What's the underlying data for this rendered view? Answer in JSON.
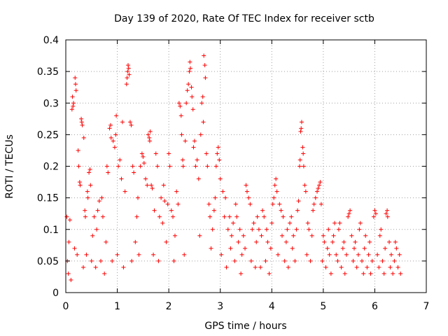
{
  "chart_data": {
    "type": "scatter",
    "title": "Day 139 of 2020, Rate Of TEC Index for receiver sctb",
    "xlabel": "GPS time / hours",
    "ylabel": "ROTI / TECUs",
    "xlim": [
      0,
      7
    ],
    "ylim": [
      0,
      0.4
    ],
    "xticks": [
      0,
      1,
      2,
      3,
      4,
      5,
      6,
      7
    ],
    "xtick_labels": [
      "0",
      "1",
      "2",
      "3",
      "4",
      "5",
      "6",
      "7"
    ],
    "yticks": [
      0,
      0.05,
      0.1,
      0.15,
      0.2,
      0.25,
      0.3,
      0.35,
      0.4
    ],
    "ytick_labels": [
      "0",
      "0.05",
      "0.1",
      "0.15",
      "0.2",
      "0.25",
      "0.3",
      "0.35",
      "0.4"
    ],
    "grid": true,
    "marker": "+",
    "color": "#ff0000",
    "series": [
      {
        "name": "ROTI",
        "points": [
          [
            0.02,
            0.12
          ],
          [
            0.03,
            0.05
          ],
          [
            0.05,
            0.03
          ],
          [
            0.06,
            0.08
          ],
          [
            0.08,
            0.115
          ],
          [
            0.1,
            0.02
          ],
          [
            0.12,
            0.29
          ],
          [
            0.13,
            0.31
          ],
          [
            0.14,
            0.295
          ],
          [
            0.15,
            0.3
          ],
          [
            0.17,
            0.07
          ],
          [
            0.18,
            0.34
          ],
          [
            0.19,
            0.33
          ],
          [
            0.2,
            0.32
          ],
          [
            0.22,
            0.06
          ],
          [
            0.24,
            0.225
          ],
          [
            0.25,
            0.2
          ],
          [
            0.27,
            0.175
          ],
          [
            0.28,
            0.17
          ],
          [
            0.3,
            0.275
          ],
          [
            0.31,
            0.27
          ],
          [
            0.32,
            0.265
          ],
          [
            0.34,
            0.04
          ],
          [
            0.35,
            0.245
          ],
          [
            0.37,
            0.13
          ],
          [
            0.38,
            0.12
          ],
          [
            0.4,
            0.06
          ],
          [
            0.42,
            0.16
          ],
          [
            0.43,
            0.15
          ],
          [
            0.45,
            0.19
          ],
          [
            0.47,
            0.195
          ],
          [
            0.48,
            0.17
          ],
          [
            0.5,
            0.05
          ],
          [
            0.52,
            0.09
          ],
          [
            0.55,
            0.12
          ],
          [
            0.58,
            0.04
          ],
          [
            0.6,
            0.1
          ],
          [
            0.62,
            0.13
          ],
          [
            0.65,
            0.145
          ],
          [
            0.68,
            0.05
          ],
          [
            0.7,
            0.15
          ],
          [
            0.72,
            0.12
          ],
          [
            0.75,
            0.03
          ],
          [
            0.78,
            0.08
          ],
          [
            0.8,
            0.2
          ],
          [
            0.82,
            0.19
          ],
          [
            0.85,
            0.26
          ],
          [
            0.87,
            0.265
          ],
          [
            0.88,
            0.245
          ],
          [
            0.9,
            0.05
          ],
          [
            0.92,
            0.24
          ],
          [
            0.95,
            0.23
          ],
          [
            0.97,
            0.25
          ],
          [
            0.98,
            0.28
          ],
          [
            1.0,
            0.06
          ],
          [
            1.02,
            0.2
          ],
          [
            1.05,
            0.21
          ],
          [
            1.08,
            0.18
          ],
          [
            1.1,
            0.27
          ],
          [
            1.12,
            0.04
          ],
          [
            1.15,
            0.16
          ],
          [
            1.18,
            0.33
          ],
          [
            1.19,
            0.34
          ],
          [
            1.2,
            0.35
          ],
          [
            1.21,
            0.36
          ],
          [
            1.22,
            0.355
          ],
          [
            1.23,
            0.345
          ],
          [
            1.25,
            0.27
          ],
          [
            1.27,
            0.265
          ],
          [
            1.28,
            0.05
          ],
          [
            1.3,
            0.2
          ],
          [
            1.32,
            0.19
          ],
          [
            1.35,
            0.08
          ],
          [
            1.38,
            0.12
          ],
          [
            1.4,
            0.15
          ],
          [
            1.42,
            0.06
          ],
          [
            1.45,
            0.2
          ],
          [
            1.48,
            0.22
          ],
          [
            1.5,
            0.215
          ],
          [
            1.52,
            0.205
          ],
          [
            1.55,
            0.18
          ],
          [
            1.58,
            0.17
          ],
          [
            1.6,
            0.25
          ],
          [
            1.62,
            0.245
          ],
          [
            1.63,
            0.24
          ],
          [
            1.64,
            0.255
          ],
          [
            1.66,
            0.17
          ],
          [
            1.68,
            0.165
          ],
          [
            1.7,
            0.06
          ],
          [
            1.72,
            0.13
          ],
          [
            1.75,
            0.22
          ],
          [
            1.78,
            0.2
          ],
          [
            1.8,
            0.05
          ],
          [
            1.82,
            0.12
          ],
          [
            1.85,
            0.15
          ],
          [
            1.88,
            0.11
          ],
          [
            1.9,
            0.17
          ],
          [
            1.92,
            0.145
          ],
          [
            1.95,
            0.08
          ],
          [
            1.98,
            0.14
          ],
          [
            2.0,
            0.22
          ],
          [
            2.02,
            0.2
          ],
          [
            2.05,
            0.13
          ],
          [
            2.08,
            0.12
          ],
          [
            2.1,
            0.05
          ],
          [
            2.12,
            0.09
          ],
          [
            2.15,
            0.16
          ],
          [
            2.18,
            0.14
          ],
          [
            2.2,
            0.3
          ],
          [
            2.22,
            0.295
          ],
          [
            2.24,
            0.28
          ],
          [
            2.25,
            0.25
          ],
          [
            2.27,
            0.21
          ],
          [
            2.28,
            0.2
          ],
          [
            2.3,
            0.06
          ],
          [
            2.32,
            0.24
          ],
          [
            2.34,
            0.3
          ],
          [
            2.36,
            0.32
          ],
          [
            2.38,
            0.33
          ],
          [
            2.4,
            0.35
          ],
          [
            2.41,
            0.365
          ],
          [
            2.42,
            0.355
          ],
          [
            2.44,
            0.325
          ],
          [
            2.45,
            0.31
          ],
          [
            2.47,
            0.29
          ],
          [
            2.48,
            0.23
          ],
          [
            2.5,
            0.24
          ],
          [
            2.52,
            0.2
          ],
          [
            2.55,
            0.21
          ],
          [
            2.58,
            0.18
          ],
          [
            2.6,
            0.09
          ],
          [
            2.62,
            0.25
          ],
          [
            2.64,
            0.3
          ],
          [
            2.66,
            0.31
          ],
          [
            2.67,
            0.27
          ],
          [
            2.68,
            0.375
          ],
          [
            2.7,
            0.36
          ],
          [
            2.71,
            0.34
          ],
          [
            2.73,
            0.22
          ],
          [
            2.75,
            0.2
          ],
          [
            2.78,
            0.14
          ],
          [
            2.8,
            0.12
          ],
          [
            2.82,
            0.07
          ],
          [
            2.85,
            0.1
          ],
          [
            2.88,
            0.13
          ],
          [
            2.9,
            0.15
          ],
          [
            2.92,
            0.2
          ],
          [
            2.94,
            0.22
          ],
          [
            2.96,
            0.23
          ],
          [
            2.98,
            0.21
          ],
          [
            3.0,
            0.18
          ],
          [
            3.02,
            0.06
          ],
          [
            3.05,
            0.16
          ],
          [
            3.08,
            0.12
          ],
          [
            3.1,
            0.15
          ],
          [
            3.12,
            0.04
          ],
          [
            3.15,
            0.1
          ],
          [
            3.18,
            0.12
          ],
          [
            3.2,
            0.07
          ],
          [
            3.22,
            0.09
          ],
          [
            3.25,
            0.11
          ],
          [
            3.28,
            0.05
          ],
          [
            3.3,
            0.14
          ],
          [
            3.32,
            0.12
          ],
          [
            3.35,
            0.08
          ],
          [
            3.38,
            0.1
          ],
          [
            3.4,
            0.03
          ],
          [
            3.42,
            0.06
          ],
          [
            3.45,
            0.09
          ],
          [
            3.48,
            0.07
          ],
          [
            3.5,
            0.17
          ],
          [
            3.52,
            0.16
          ],
          [
            3.55,
            0.15
          ],
          [
            3.58,
            0.14
          ],
          [
            3.6,
            0.05
          ],
          [
            3.62,
            0.1
          ],
          [
            3.65,
            0.11
          ],
          [
            3.68,
            0.04
          ],
          [
            3.7,
            0.08
          ],
          [
            3.72,
            0.12
          ],
          [
            3.75,
            0.1
          ],
          [
            3.78,
            0.04
          ],
          [
            3.8,
            0.09
          ],
          [
            3.82,
            0.13
          ],
          [
            3.85,
            0.12
          ],
          [
            3.88,
            0.05
          ],
          [
            3.9,
            0.1
          ],
          [
            3.92,
            0.08
          ],
          [
            3.95,
            0.03
          ],
          [
            3.98,
            0.07
          ],
          [
            4.0,
            0.11
          ],
          [
            4.02,
            0.14
          ],
          [
            4.04,
            0.15
          ],
          [
            4.06,
            0.17
          ],
          [
            4.08,
            0.18
          ],
          [
            4.1,
            0.16
          ],
          [
            4.12,
            0.06
          ],
          [
            4.15,
            0.14
          ],
          [
            4.18,
            0.13
          ],
          [
            4.2,
            0.09
          ],
          [
            4.22,
            0.12
          ],
          [
            4.25,
            0.05
          ],
          [
            4.28,
            0.08
          ],
          [
            4.3,
            0.1
          ],
          [
            4.32,
            0.04
          ],
          [
            4.35,
            0.11
          ],
          [
            4.38,
            0.12
          ],
          [
            4.4,
            0.07
          ],
          [
            4.42,
            0.09
          ],
          [
            4.45,
            0.05
          ],
          [
            4.48,
            0.1
          ],
          [
            4.5,
            0.13
          ],
          [
            4.52,
            0.145
          ],
          [
            4.54,
            0.2
          ],
          [
            4.55,
            0.21
          ],
          [
            4.56,
            0.255
          ],
          [
            4.57,
            0.26
          ],
          [
            4.58,
            0.27
          ],
          [
            4.6,
            0.23
          ],
          [
            4.61,
            0.22
          ],
          [
            4.62,
            0.2
          ],
          [
            4.64,
            0.17
          ],
          [
            4.66,
            0.16
          ],
          [
            4.68,
            0.06
          ],
          [
            4.7,
            0.11
          ],
          [
            4.72,
            0.1
          ],
          [
            4.75,
            0.05
          ],
          [
            4.78,
            0.09
          ],
          [
            4.8,
            0.13
          ],
          [
            4.82,
            0.14
          ],
          [
            4.85,
            0.15
          ],
          [
            4.88,
            0.16
          ],
          [
            4.9,
            0.165
          ],
          [
            4.92,
            0.17
          ],
          [
            4.94,
            0.175
          ],
          [
            4.96,
            0.14
          ],
          [
            4.98,
            0.05
          ],
          [
            5.0,
            0.09
          ],
          [
            5.02,
            0.08
          ],
          [
            5.05,
            0.04
          ],
          [
            5.08,
            0.07
          ],
          [
            5.1,
            0.1
          ],
          [
            5.12,
            0.06
          ],
          [
            5.15,
            0.03
          ],
          [
            5.18,
            0.08
          ],
          [
            5.2,
            0.09
          ],
          [
            5.22,
            0.11
          ],
          [
            5.25,
            0.06
          ],
          [
            5.28,
            0.05
          ],
          [
            5.3,
            0.1
          ],
          [
            5.32,
            0.11
          ],
          [
            5.35,
            0.04
          ],
          [
            5.38,
            0.07
          ],
          [
            5.4,
            0.08
          ],
          [
            5.42,
            0.03
          ],
          [
            5.45,
            0.06
          ],
          [
            5.48,
            0.12
          ],
          [
            5.5,
            0.125
          ],
          [
            5.52,
            0.13
          ],
          [
            5.55,
            0.09
          ],
          [
            5.58,
            0.05
          ],
          [
            5.6,
            0.07
          ],
          [
            5.62,
            0.08
          ],
          [
            5.65,
            0.04
          ],
          [
            5.68,
            0.06
          ],
          [
            5.7,
            0.1
          ],
          [
            5.72,
            0.11
          ],
          [
            5.75,
            0.05
          ],
          [
            5.78,
            0.03
          ],
          [
            5.8,
            0.07
          ],
          [
            5.82,
            0.09
          ],
          [
            5.85,
            0.04
          ],
          [
            5.88,
            0.06
          ],
          [
            5.9,
            0.08
          ],
          [
            5.92,
            0.03
          ],
          [
            5.95,
            0.05
          ],
          [
            5.98,
            0.12
          ],
          [
            6.0,
            0.13
          ],
          [
            6.02,
            0.125
          ],
          [
            6.05,
            0.06
          ],
          [
            6.08,
            0.04
          ],
          [
            6.1,
            0.09
          ],
          [
            6.12,
            0.1
          ],
          [
            6.15,
            0.05
          ],
          [
            6.18,
            0.03
          ],
          [
            6.2,
            0.07
          ],
          [
            6.22,
            0.125
          ],
          [
            6.24,
            0.13
          ],
          [
            6.25,
            0.12
          ],
          [
            6.28,
            0.08
          ],
          [
            6.3,
            0.04
          ],
          [
            6.32,
            0.06
          ],
          [
            6.35,
            0.03
          ],
          [
            6.38,
            0.05
          ],
          [
            6.4,
            0.08
          ],
          [
            6.42,
            0.07
          ],
          [
            6.45,
            0.04
          ],
          [
            6.48,
            0.06
          ],
          [
            6.5,
            0.03
          ]
        ]
      }
    ]
  }
}
